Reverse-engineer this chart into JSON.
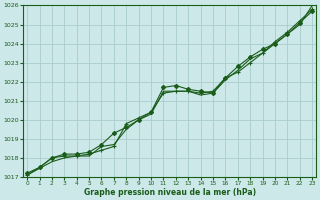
{
  "title": "Graphe pression niveau de la mer (hPa)",
  "bg_color": "#cce8e8",
  "grid_color": "#aacccc",
  "line_color": "#1a5c1a",
  "marker_color": "#1a5c1a",
  "xlim": [
    -0.3,
    23.3
  ],
  "ylim": [
    1017,
    1026
  ],
  "yticks": [
    1017,
    1018,
    1019,
    1020,
    1021,
    1022,
    1023,
    1024,
    1025,
    1026
  ],
  "xticks": [
    0,
    1,
    2,
    3,
    4,
    5,
    6,
    7,
    8,
    9,
    10,
    11,
    12,
    13,
    14,
    15,
    16,
    17,
    18,
    19,
    20,
    21,
    22,
    23
  ],
  "series1_x": [
    0,
    1,
    2,
    3,
    4,
    5,
    6,
    7,
    8,
    9,
    10,
    11,
    12,
    13,
    14,
    15,
    16,
    17,
    18,
    19,
    20,
    21,
    22,
    23
  ],
  "series1_y": [
    1017.1,
    1017.5,
    1018.0,
    1018.1,
    1018.1,
    1018.2,
    1018.4,
    1018.6,
    1019.8,
    1020.1,
    1020.4,
    1021.4,
    1021.5,
    1021.5,
    1021.4,
    1021.5,
    1022.2,
    1022.5,
    1023.0,
    1023.5,
    1024.1,
    1024.6,
    1025.2,
    1025.8
  ],
  "series2_x": [
    0,
    1,
    2,
    3,
    4,
    5,
    6,
    7,
    8,
    9,
    10,
    11,
    12,
    13,
    14,
    15,
    16,
    17,
    18,
    19,
    20,
    21,
    22,
    23
  ],
  "series2_y": [
    1017.2,
    1017.5,
    1018.0,
    1018.2,
    1018.2,
    1018.3,
    1018.7,
    1019.3,
    1019.6,
    1020.0,
    1020.4,
    1021.7,
    1021.8,
    1021.6,
    1021.5,
    1021.4,
    1022.2,
    1022.8,
    1023.3,
    1023.7,
    1024.0,
    1024.5,
    1025.1,
    1025.7
  ],
  "series3_x": [
    0,
    2,
    3,
    4,
    5,
    6,
    7,
    8,
    9,
    10,
    11,
    12,
    13,
    14,
    15,
    16,
    17,
    18,
    19,
    20,
    21,
    22,
    23
  ],
  "series3_y": [
    1017.1,
    1017.8,
    1018.0,
    1018.1,
    1018.1,
    1018.6,
    1018.7,
    1019.5,
    1020.0,
    1020.3,
    1021.5,
    1021.5,
    1021.5,
    1021.3,
    1021.4,
    1022.1,
    1022.6,
    1023.2,
    1023.5,
    1024.0,
    1024.5,
    1025.0,
    1026.0
  ],
  "figsize": [
    3.2,
    2.0
  ],
  "dpi": 100
}
